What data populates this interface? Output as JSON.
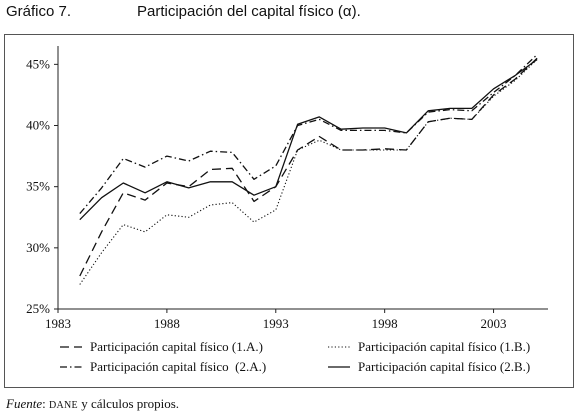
{
  "figure": {
    "number": "Gráfico 7.",
    "title": "Participación del capital físico (α).",
    "source_label": "Fuente",
    "source_sep": ": ",
    "source_org": "DANE",
    "source_rest": " y cálculos propios."
  },
  "chart_data": {
    "type": "line",
    "title": "Participación del capital físico (α).",
    "xlabel": "",
    "ylabel": "",
    "xlim": [
      1983,
      2005.5
    ],
    "ylim": [
      25,
      46.5
    ],
    "xticks": [
      1983,
      1988,
      1993,
      1998,
      2003
    ],
    "yticks": [
      25,
      30,
      35,
      40,
      45
    ],
    "ytick_labels": [
      "25%",
      "30%",
      "35%",
      "40%",
      "45%"
    ],
    "grid": false,
    "legend_position": "bottom",
    "x": [
      1984,
      1985,
      1986,
      1987,
      1988,
      1989,
      1990,
      1991,
      1992,
      1993,
      1994,
      1995,
      1996,
      1997,
      1998,
      1999,
      2000,
      2001,
      2002,
      2003,
      2004,
      2005
    ],
    "series": [
      {
        "name": "Participación capital físico (1.A.)",
        "dash": "dashed",
        "values": [
          27.7,
          31.3,
          34.5,
          33.9,
          35.3,
          35.0,
          36.4,
          36.5,
          33.8,
          35.0,
          38.0,
          39.1,
          38.0,
          38.0,
          38.1,
          38.0,
          40.3,
          40.6,
          40.5,
          42.5,
          43.8,
          45.5
        ]
      },
      {
        "name": "Participación capital físico (1.B.)",
        "dash": "dotted",
        "values": [
          27.0,
          29.6,
          31.9,
          31.3,
          32.7,
          32.5,
          33.5,
          33.7,
          32.1,
          33.1,
          38.0,
          38.8,
          38.0,
          38.0,
          38.0,
          38.0,
          40.3,
          40.6,
          40.5,
          42.4,
          43.7,
          45.4
        ]
      },
      {
        "name": "Participación capital físico  (2.A.)",
        "dash": "dashdot",
        "values": [
          32.8,
          34.9,
          37.3,
          36.6,
          37.5,
          37.1,
          37.9,
          37.8,
          35.6,
          36.7,
          40.0,
          40.5,
          39.6,
          39.6,
          39.6,
          39.4,
          41.1,
          41.3,
          41.2,
          42.7,
          44.1,
          45.8
        ]
      },
      {
        "name": "Participación capital físico (2.B.)",
        "dash": "solid",
        "values": [
          32.3,
          34.1,
          35.3,
          34.5,
          35.4,
          34.9,
          35.4,
          35.4,
          34.3,
          35.0,
          40.1,
          40.7,
          39.7,
          39.8,
          39.8,
          39.4,
          41.2,
          41.4,
          41.4,
          43.0,
          44.1,
          45.4
        ]
      }
    ]
  }
}
